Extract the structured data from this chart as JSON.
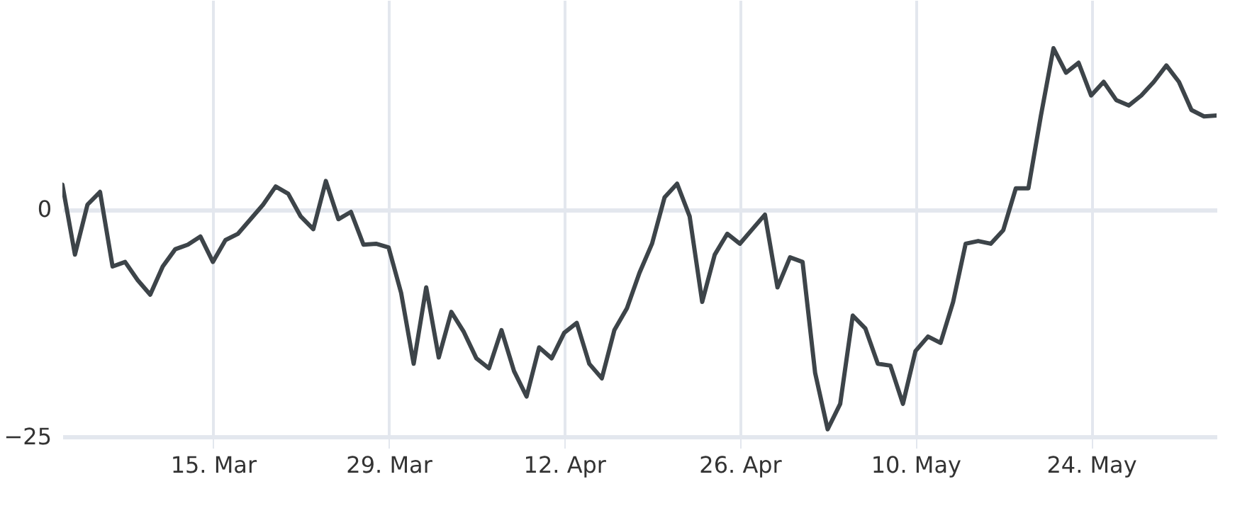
{
  "chart_data": {
    "type": "line",
    "x": [
      "--03-03",
      "--03-04",
      "--03-05",
      "--03-06",
      "--03-07",
      "--03-08",
      "--03-09",
      "--03-10",
      "--03-11",
      "--03-12",
      "--03-13",
      "--03-14",
      "--03-15",
      "--03-16",
      "--03-17",
      "--03-18",
      "--03-19",
      "--03-20",
      "--03-21",
      "--03-22",
      "--03-23",
      "--03-24",
      "--03-25",
      "--03-26",
      "--03-27",
      "--03-28",
      "--03-29",
      "--03-30",
      "--03-31",
      "--04-01",
      "--04-02",
      "--04-03",
      "--04-04",
      "--04-05",
      "--04-06",
      "--04-07",
      "--04-08",
      "--04-09",
      "--04-10",
      "--04-11",
      "--04-12",
      "--04-13",
      "--04-14",
      "--04-15",
      "--04-16",
      "--04-17",
      "--04-18",
      "--04-19",
      "--04-20",
      "--04-21",
      "--04-22",
      "--04-23",
      "--04-24",
      "--04-25",
      "--04-26",
      "--04-27",
      "--04-28",
      "--04-29",
      "--04-30",
      "--05-01",
      "--05-02",
      "--05-03",
      "--05-04",
      "--05-05",
      "--05-06",
      "--05-07",
      "--05-08",
      "--05-09",
      "--05-10",
      "--05-11",
      "--05-12",
      "--05-13",
      "--05-14",
      "--05-15",
      "--05-16",
      "--05-17",
      "--05-18",
      "--05-19",
      "--05-20",
      "--05-21",
      "--05-22",
      "--05-23",
      "--05-24",
      "--05-25",
      "--05-26",
      "--05-27",
      "--05-28",
      "--05-29",
      "--05-30",
      "--05-31",
      "--06-01",
      "--06-02",
      "--06-03"
    ],
    "series": [
      {
        "color": "#3d4449",
        "values": [
          2.7,
          -5,
          0.5,
          1.9,
          -6.3,
          -5.8,
          -7.8,
          -9.4,
          -6.3,
          -4.4,
          -3.9,
          -3,
          -5.8,
          -3.4,
          -2.7,
          -1.1,
          0.5,
          2.5,
          1.7,
          -0.8,
          -2.2,
          3.1,
          -1.1,
          -0.3,
          -3.9,
          -3.8,
          -4.2,
          -9.2,
          -17,
          -8.6,
          -16.3,
          -11.3,
          -13.5,
          -16.4,
          -17.5,
          -13.3,
          -17.8,
          -20.6,
          -15.2,
          -16.4,
          -13.6,
          -12.5,
          -17,
          -18.6,
          -13.3,
          -10.9,
          -7,
          -3.8,
          1.3,
          2.8,
          -0.8,
          -10.2,
          -5,
          -2.7,
          -3.8,
          -2.2,
          -0.6,
          -8.6,
          -5.3,
          -5.8,
          -18,
          -24.2,
          -21.4,
          -11.7,
          -13.1,
          -17,
          -17.2,
          -21.4,
          -15.6,
          -14,
          -14.7,
          -10.2,
          -3.8,
          -3.5,
          -3.8,
          -2.3,
          2.3,
          2.3,
          10.3,
          17.7,
          15,
          16.1,
          12.5,
          14,
          12,
          11.4,
          12.5,
          14,
          15.8,
          14,
          10.9,
          10.2,
          10.3
        ]
      }
    ],
    "xlim": [
      "--03-03",
      "--06-03"
    ],
    "xticks": [
      {
        "value": "--03-15",
        "label": "15. Mar"
      },
      {
        "value": "--03-29",
        "label": "29. Mar"
      },
      {
        "value": "--04-12",
        "label": "12. Apr"
      },
      {
        "value": "--04-26",
        "label": "26. Apr"
      },
      {
        "value": "--05-10",
        "label": "10. May"
      },
      {
        "value": "--05-24",
        "label": "24. May"
      }
    ],
    "ylim": [
      -25,
      23
    ],
    "yticks": [
      {
        "value": -25,
        "label": "−25"
      },
      0
    ],
    "grid": true,
    "marker": "none",
    "line_style": "solid"
  }
}
